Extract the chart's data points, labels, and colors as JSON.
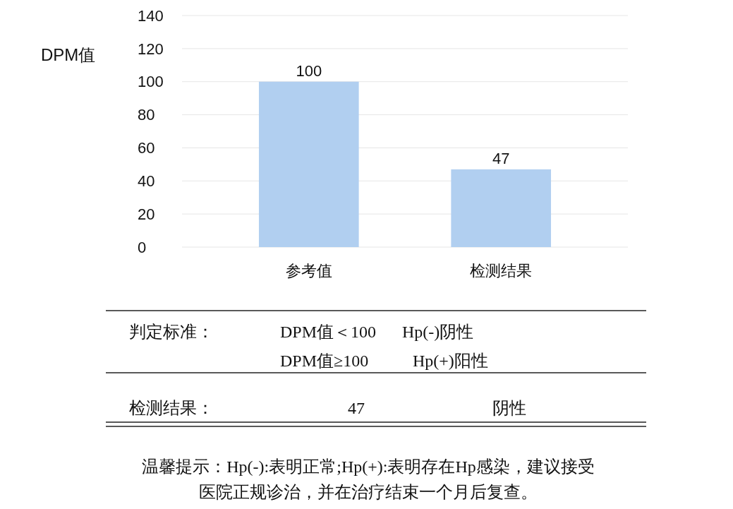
{
  "chart_data": {
    "type": "bar",
    "ylabel": "DPM值",
    "categories": [
      "参考值",
      "检测结果"
    ],
    "values": [
      100,
      47
    ],
    "color": "#b1cff0",
    "ylim": [
      0,
      140
    ],
    "yticks": [
      0,
      20,
      40,
      60,
      80,
      100,
      120,
      140
    ],
    "grid": "y",
    "data_labels": true,
    "annotations": [
      "判定标准：",
      "DPM值＜100",
      "Hp(-)阴性",
      "DPM值≥100",
      "Hp(+)阳性",
      "检测结果：",
      "47",
      "阴性",
      "温馨提示：Hp(-):表明正常;Hp(+):表明存在Hp感染，建议接受医院正规诊治，并在治疗结束一个月后复查。"
    ]
  }
}
